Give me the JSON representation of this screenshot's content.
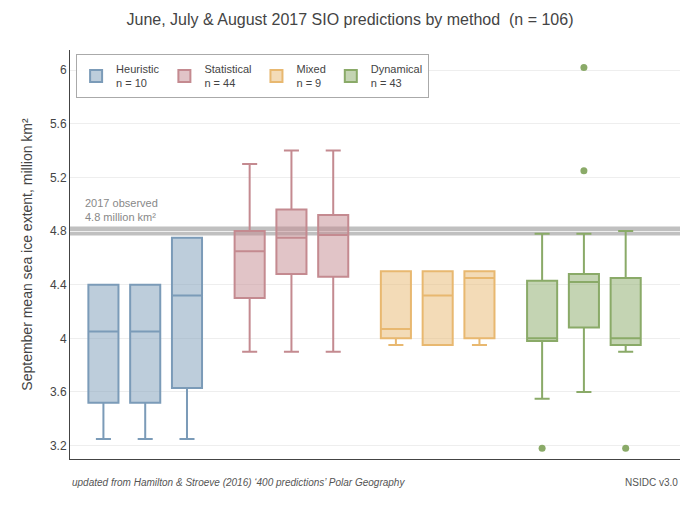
{
  "chart_data": {
    "type": "box",
    "title": "June, July & August 2017 SIO predictions by method  (n = 106)",
    "y_label": "September mean sea ice extent, million km²",
    "ylim": [
      3.1,
      6.15
    ],
    "yticks": [
      3.2,
      3.6,
      4.0,
      4.4,
      4.8,
      5.2,
      5.6,
      6.0
    ],
    "grid": true,
    "legend": "upper left",
    "tick_labels": "y",
    "reference_line": {
      "value": 4.8,
      "label": "2017 observed\n4.8 million km²",
      "color": "#c0c0c0"
    },
    "notes": [
      "updated from Hamilton & Stroeve (2016) ‘400 predictions’ Polar Geography",
      "NSIDC v3.0"
    ],
    "series": [
      {
        "name": "Heuristic\nn = 10",
        "color": "#7b9bb8",
        "boxes": [
          {
            "low": 3.25,
            "q1": 3.52,
            "median": 4.05,
            "q3": 4.4,
            "high": 4.4,
            "outliers": []
          },
          {
            "low": 3.25,
            "q1": 3.52,
            "median": 4.05,
            "q3": 4.4,
            "high": 4.4,
            "outliers": []
          },
          {
            "low": 3.25,
            "q1": 3.63,
            "median": 4.32,
            "q3": 4.75,
            "high": 4.75,
            "outliers": []
          }
        ]
      },
      {
        "name": "Statistical\nn = 44",
        "color": "#c48a90",
        "boxes": [
          {
            "low": 3.9,
            "q1": 4.3,
            "median": 4.65,
            "q3": 4.8,
            "high": 5.3,
            "outliers": []
          },
          {
            "low": 3.9,
            "q1": 4.48,
            "median": 4.75,
            "q3": 4.96,
            "high": 5.4,
            "outliers": []
          },
          {
            "low": 3.9,
            "q1": 4.46,
            "median": 4.77,
            "q3": 4.92,
            "high": 5.4,
            "outliers": []
          }
        ]
      },
      {
        "name": "Mixed\nn = 9",
        "color": "#e8b870",
        "boxes": [
          {
            "low": 3.95,
            "q1": 4.0,
            "median": 4.07,
            "q3": 4.5,
            "high": 4.5,
            "outliers": []
          },
          {
            "low": 3.95,
            "q1": 3.95,
            "median": 4.32,
            "q3": 4.5,
            "high": 4.5,
            "outliers": []
          },
          {
            "low": 3.95,
            "q1": 4.0,
            "median": 4.45,
            "q3": 4.5,
            "high": 4.5,
            "outliers": []
          }
        ]
      },
      {
        "name": "Dynamical\nn = 43",
        "color": "#8aaa68",
        "boxes": [
          {
            "low": 3.55,
            "q1": 3.98,
            "median": 4.0,
            "q3": 4.43,
            "high": 4.78,
            "outliers": [
              3.18
            ]
          },
          {
            "low": 3.6,
            "q1": 4.08,
            "median": 4.42,
            "q3": 4.48,
            "high": 4.78,
            "outliers": [
              5.25,
              6.02
            ]
          },
          {
            "low": 3.9,
            "q1": 3.95,
            "median": 4.0,
            "q3": 4.45,
            "high": 4.8,
            "outliers": [
              3.18
            ]
          }
        ]
      }
    ]
  }
}
